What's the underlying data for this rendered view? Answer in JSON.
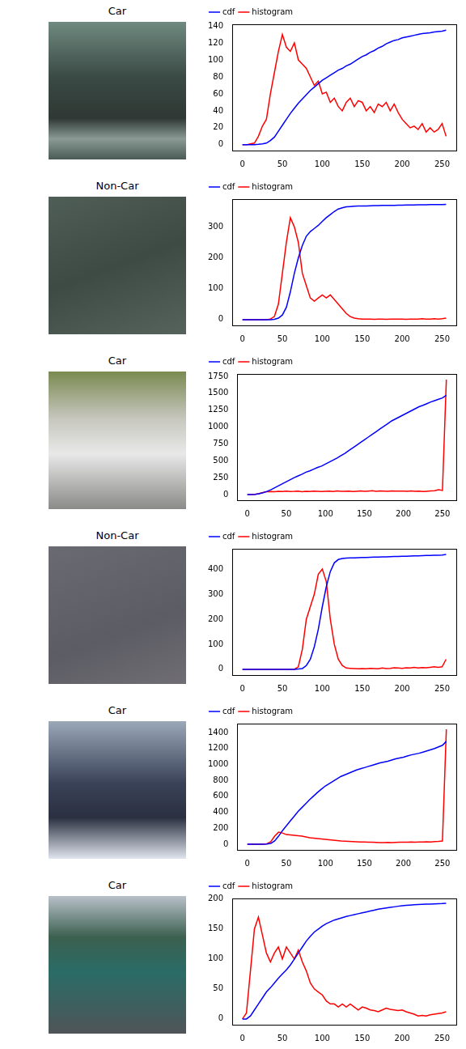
{
  "images": [
    {
      "title": "Car"
    },
    {
      "title": "Non-Car"
    },
    {
      "title": "Car"
    },
    {
      "title": "Non-Car"
    },
    {
      "title": "Car"
    },
    {
      "title": "Car"
    }
  ],
  "chart_data": [
    {
      "type": "line",
      "x": [
        0,
        5,
        10,
        15,
        20,
        25,
        30,
        35,
        40,
        45,
        50,
        55,
        60,
        65,
        70,
        75,
        80,
        85,
        90,
        95,
        100,
        105,
        110,
        115,
        120,
        125,
        130,
        135,
        140,
        145,
        150,
        155,
        160,
        165,
        170,
        175,
        180,
        185,
        190,
        195,
        200,
        205,
        210,
        215,
        220,
        225,
        230,
        235,
        240,
        245,
        250,
        255
      ],
      "xlim": [
        -12.75,
        267.75
      ],
      "xticks": [
        0,
        50,
        100,
        150,
        200,
        250
      ],
      "ylim": [
        -6.8,
        142
      ],
      "yticks": [
        0,
        20,
        40,
        60,
        80,
        100,
        120,
        140
      ],
      "grid": false,
      "legend": "top left",
      "series": [
        {
          "name": "cdf",
          "color": "#0000ff",
          "values": [
            0,
            0,
            0,
            0.2,
            0.5,
            1,
            2,
            5,
            9,
            16,
            23,
            30,
            37,
            43,
            49,
            54,
            59,
            64,
            68,
            72,
            76,
            79,
            82,
            85,
            88,
            90,
            93,
            95,
            98,
            101,
            104,
            106,
            109,
            111,
            114,
            116,
            119,
            121,
            123,
            124,
            126,
            127,
            128,
            129,
            130,
            131,
            131.5,
            132,
            133,
            133.5,
            134,
            135
          ]
        },
        {
          "name": "histogram",
          "color": "#ff0000",
          "values": [
            0,
            0,
            1,
            2,
            10,
            22,
            30,
            60,
            85,
            110,
            130,
            115,
            110,
            120,
            100,
            95,
            90,
            80,
            70,
            75,
            60,
            62,
            50,
            55,
            45,
            40,
            50,
            55,
            45,
            52,
            50,
            40,
            45,
            38,
            48,
            45,
            50,
            40,
            48,
            38,
            30,
            25,
            20,
            22,
            18,
            25,
            15,
            20,
            15,
            18,
            25,
            10
          ]
        }
      ]
    },
    {
      "type": "line",
      "x": [
        0,
        5,
        10,
        15,
        20,
        25,
        30,
        35,
        40,
        45,
        50,
        55,
        60,
        65,
        70,
        75,
        80,
        85,
        90,
        95,
        100,
        105,
        110,
        115,
        120,
        125,
        130,
        135,
        140,
        145,
        150,
        155,
        160,
        165,
        170,
        175,
        180,
        185,
        190,
        195,
        200,
        205,
        210,
        215,
        220,
        225,
        230,
        235,
        240,
        245,
        250,
        255
      ],
      "xlim": [
        -12.75,
        267.75
      ],
      "xticks": [
        0,
        50,
        100,
        150,
        200,
        250
      ],
      "ylim": [
        -18.6,
        390
      ],
      "yticks": [
        0,
        100,
        200,
        300
      ],
      "grid": false,
      "legend": "top left",
      "series": [
        {
          "name": "cdf",
          "color": "#0000ff",
          "values": [
            0,
            0,
            0,
            0,
            0,
            0,
            0,
            0,
            1,
            5,
            15,
            40,
            90,
            150,
            200,
            240,
            270,
            285,
            295,
            305,
            318,
            330,
            340,
            350,
            358,
            362,
            365,
            366,
            367,
            367.5,
            368,
            368,
            368.5,
            369,
            369,
            369.5,
            369.5,
            370,
            370,
            370.5,
            370.5,
            371,
            371,
            371,
            371.5,
            371.5,
            371.5,
            372,
            372,
            372,
            372,
            373
          ]
        },
        {
          "name": "histogram",
          "color": "#ff0000",
          "values": [
            0,
            0,
            0,
            0,
            0,
            0,
            0,
            2,
            10,
            50,
            150,
            250,
            330,
            300,
            250,
            150,
            110,
            70,
            60,
            70,
            80,
            70,
            80,
            65,
            50,
            35,
            20,
            10,
            5,
            3,
            2,
            2,
            2,
            1,
            2,
            2,
            1,
            2,
            2,
            2,
            2,
            1,
            2,
            2,
            2,
            3,
            2,
            2,
            3,
            2,
            3,
            5
          ]
        }
      ]
    },
    {
      "type": "line",
      "x": [
        0,
        5,
        10,
        15,
        20,
        25,
        30,
        35,
        40,
        45,
        50,
        55,
        60,
        65,
        70,
        75,
        80,
        85,
        90,
        95,
        100,
        105,
        110,
        115,
        120,
        125,
        130,
        135,
        140,
        145,
        150,
        155,
        160,
        165,
        170,
        175,
        180,
        185,
        190,
        195,
        200,
        205,
        210,
        215,
        220,
        225,
        230,
        235,
        240,
        245,
        250,
        255
      ],
      "xlim": [
        -12.75,
        267.75
      ],
      "xticks": [
        0,
        50,
        100,
        150,
        200,
        250
      ],
      "ylim": [
        -85,
        1785
      ],
      "yticks": [
        0,
        250,
        500,
        750,
        1000,
        1250,
        1500,
        1750
      ],
      "grid": false,
      "legend": "top left",
      "series": [
        {
          "name": "cdf",
          "color": "#0000ff",
          "values": [
            0,
            0,
            2,
            10,
            25,
            45,
            70,
            100,
            130,
            160,
            190,
            220,
            250,
            275,
            300,
            330,
            350,
            375,
            400,
            420,
            450,
            480,
            510,
            540,
            575,
            610,
            650,
            690,
            730,
            770,
            810,
            850,
            890,
            930,
            970,
            1010,
            1050,
            1090,
            1120,
            1150,
            1180,
            1210,
            1240,
            1270,
            1300,
            1320,
            1345,
            1370,
            1390,
            1410,
            1430,
            1470
          ]
        },
        {
          "name": "histogram",
          "color": "#ff0000",
          "values": [
            0,
            0,
            2,
            15,
            30,
            40,
            45,
            42,
            48,
            45,
            50,
            44,
            46,
            50,
            42,
            48,
            45,
            50,
            47,
            44,
            48,
            50,
            45,
            52,
            46,
            48,
            50,
            45,
            48,
            52,
            46,
            50,
            55,
            48,
            52,
            50,
            47,
            53,
            49,
            51,
            50,
            46,
            52,
            48,
            50,
            45,
            48,
            52,
            55,
            70,
            60,
            1700
          ]
        }
      ]
    },
    {
      "type": "line",
      "x": [
        0,
        5,
        10,
        15,
        20,
        25,
        30,
        35,
        40,
        45,
        50,
        55,
        60,
        65,
        70,
        75,
        80,
        85,
        90,
        95,
        100,
        105,
        110,
        115,
        120,
        125,
        130,
        135,
        140,
        145,
        150,
        155,
        160,
        165,
        170,
        175,
        180,
        185,
        190,
        195,
        200,
        205,
        210,
        215,
        220,
        225,
        230,
        235,
        240,
        245,
        250,
        255
      ],
      "xlim": [
        -12.75,
        267.75
      ],
      "xticks": [
        0,
        50,
        100,
        150,
        200,
        250
      ],
      "ylim": [
        -23,
        481
      ],
      "yticks": [
        0,
        100,
        200,
        300,
        400
      ],
      "grid": false,
      "legend": "top left",
      "series": [
        {
          "name": "cdf",
          "color": "#0000ff",
          "values": [
            0,
            0,
            0,
            0,
            0,
            0,
            0,
            0,
            0,
            0,
            0,
            0,
            0,
            0,
            1,
            3,
            15,
            40,
            90,
            160,
            250,
            330,
            390,
            425,
            438,
            442,
            444,
            444.5,
            445,
            445.5,
            446,
            446.5,
            447,
            447.5,
            448,
            448.5,
            449,
            449.5,
            450,
            450.5,
            451,
            451.5,
            452,
            452.5,
            453,
            453.5,
            454,
            454.5,
            455,
            455.5,
            456,
            458
          ]
        },
        {
          "name": "histogram",
          "color": "#ff0000",
          "values": [
            0,
            0,
            0,
            0,
            0,
            0,
            0,
            0,
            0,
            0,
            0,
            0,
            0,
            0,
            10,
            80,
            200,
            250,
            300,
            380,
            400,
            350,
            200,
            100,
            40,
            15,
            5,
            4,
            3,
            2,
            3,
            2,
            4,
            3,
            2,
            5,
            3,
            4,
            6,
            5,
            4,
            6,
            5,
            8,
            5,
            7,
            6,
            8,
            10,
            8,
            10,
            40
          ]
        }
      ]
    },
    {
      "type": "line",
      "x": [
        0,
        5,
        10,
        15,
        20,
        25,
        30,
        35,
        40,
        45,
        50,
        55,
        60,
        65,
        70,
        75,
        80,
        85,
        90,
        95,
        100,
        105,
        110,
        115,
        120,
        125,
        130,
        135,
        140,
        145,
        150,
        155,
        160,
        165,
        170,
        175,
        180,
        185,
        190,
        195,
        200,
        205,
        210,
        215,
        220,
        225,
        230,
        235,
        240,
        245,
        250,
        255
      ],
      "xlim": [
        -12.75,
        267.75
      ],
      "xticks": [
        0,
        50,
        100,
        150,
        200,
        250
      ],
      "ylim": [
        -72,
        1512
      ],
      "yticks": [
        0,
        200,
        400,
        600,
        800,
        1000,
        1200,
        1400
      ],
      "grid": false,
      "legend": "top left",
      "series": [
        {
          "name": "cdf",
          "color": "#0000ff",
          "values": [
            0,
            0,
            0,
            0,
            0,
            1,
            10,
            40,
            100,
            170,
            230,
            290,
            350,
            410,
            460,
            510,
            560,
            605,
            650,
            690,
            730,
            760,
            790,
            820,
            850,
            870,
            890,
            910,
            930,
            945,
            960,
            975,
            990,
            1005,
            1020,
            1030,
            1040,
            1055,
            1070,
            1080,
            1090,
            1105,
            1120,
            1130,
            1140,
            1155,
            1170,
            1185,
            1200,
            1220,
            1240,
            1290
          ]
        },
        {
          "name": "histogram",
          "color": "#ff0000",
          "values": [
            0,
            0,
            0,
            0,
            0,
            5,
            30,
            100,
            150,
            140,
            120,
            115,
            110,
            105,
            100,
            90,
            80,
            75,
            70,
            65,
            60,
            55,
            50,
            45,
            40,
            38,
            35,
            32,
            30,
            28,
            27,
            25,
            24,
            22,
            20,
            20,
            22,
            20,
            22,
            24,
            25,
            24,
            26,
            25,
            28,
            26,
            30,
            28,
            32,
            35,
            40,
            1440
          ]
        }
      ]
    },
    {
      "type": "line",
      "x": [
        0,
        5,
        10,
        15,
        20,
        25,
        30,
        35,
        40,
        45,
        50,
        55,
        60,
        65,
        70,
        75,
        80,
        85,
        90,
        95,
        100,
        105,
        110,
        115,
        120,
        125,
        130,
        135,
        140,
        145,
        150,
        155,
        160,
        165,
        170,
        175,
        180,
        185,
        190,
        195,
        200,
        205,
        210,
        215,
        220,
        225,
        230,
        235,
        240,
        245,
        250,
        255
      ],
      "xlim": [
        -12.75,
        267.75
      ],
      "xticks": [
        0,
        50,
        100,
        150,
        200,
        250
      ],
      "ylim": [
        -9.6,
        201
      ],
      "yticks": [
        0,
        50,
        100,
        150,
        200
      ],
      "grid": false,
      "legend": "top left",
      "series": [
        {
          "name": "cdf",
          "color": "#0000ff",
          "values": [
            0,
            0,
            5,
            15,
            25,
            35,
            45,
            52,
            60,
            68,
            75,
            82,
            90,
            100,
            110,
            120,
            130,
            138,
            145,
            150,
            155,
            159,
            162,
            165,
            167,
            169,
            171,
            172.5,
            174,
            175.5,
            177,
            178.5,
            180,
            181.5,
            183,
            184,
            185,
            186,
            187,
            188,
            189,
            189.5,
            190,
            190.5,
            191,
            191.2,
            191.5,
            191.7,
            192,
            192.2,
            192.5,
            193
          ]
        },
        {
          "name": "histogram",
          "color": "#ff0000",
          "values": [
            0,
            10,
            80,
            150,
            170,
            140,
            110,
            95,
            110,
            120,
            100,
            120,
            110,
            100,
            115,
            95,
            80,
            60,
            50,
            45,
            40,
            30,
            25,
            25,
            20,
            25,
            20,
            25,
            20,
            15,
            20,
            18,
            15,
            14,
            12,
            15,
            18,
            16,
            15,
            14,
            15,
            12,
            10,
            8,
            5,
            6,
            5,
            7,
            8,
            9,
            10,
            12
          ]
        }
      ]
    }
  ]
}
